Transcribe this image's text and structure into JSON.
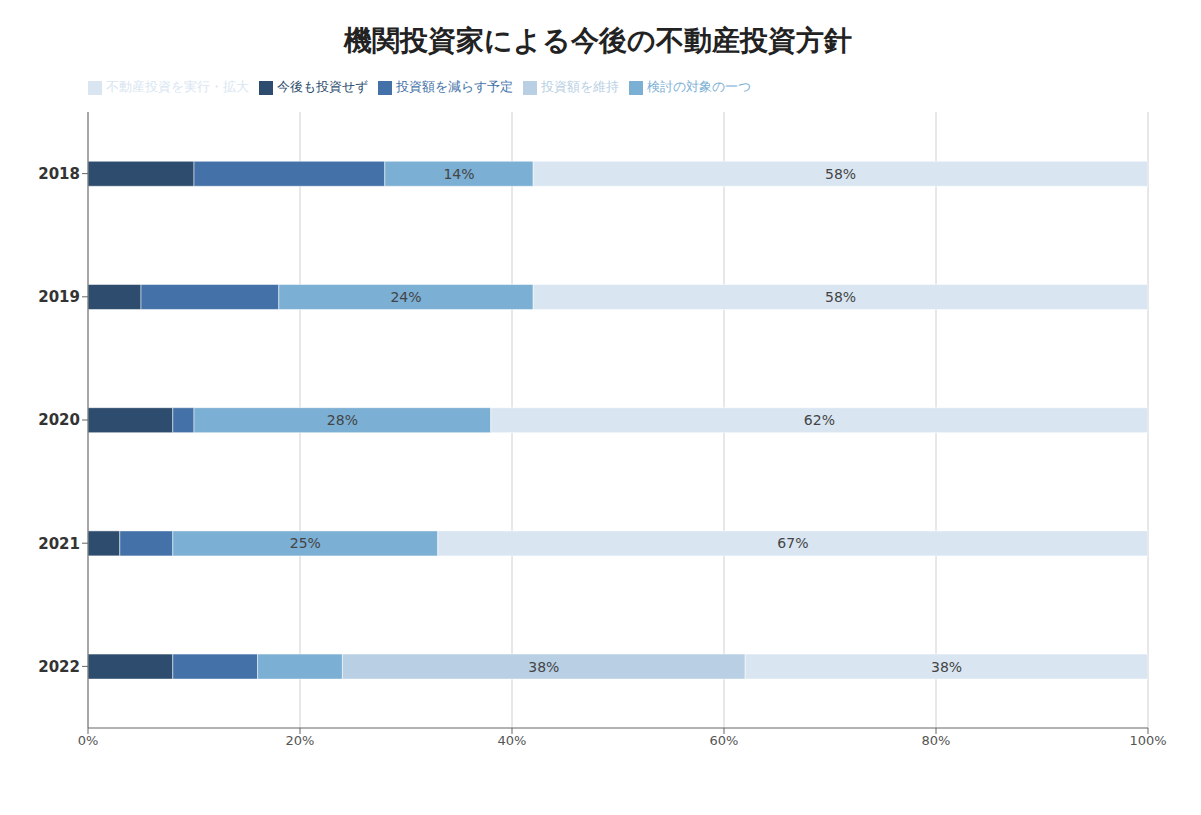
{
  "chart_data": {
    "type": "bar",
    "title": "機関投資家による今後の不動産投資方針",
    "orientation": "horizontal",
    "stacked": true,
    "categories": [
      "2018",
      "2019",
      "2020",
      "2021",
      "2022"
    ],
    "series": [
      {
        "name": "今後も投資せず",
        "color": "#2e4d6e",
        "values": [
          10,
          5,
          8,
          3,
          8
        ]
      },
      {
        "name": "投資額を減らす予定",
        "color": "#4472a8",
        "values": [
          18,
          13,
          2,
          5,
          8
        ]
      },
      {
        "name": "検討の対象の一つ",
        "color": "#7bafd4",
        "values": [
          14,
          24,
          28,
          25,
          8
        ],
        "value_labels": [
          "14%",
          "24%",
          "28%",
          "25%",
          null
        ]
      },
      {
        "name": "投資額を維持",
        "color": "#b8cfe4",
        "values": [
          0,
          0,
          0,
          0,
          38
        ],
        "value_labels": [
          null,
          null,
          null,
          null,
          "38%"
        ]
      },
      {
        "name": "不動産投資を実行・拡大",
        "color": "#d9e6f2",
        "values": [
          58,
          58,
          62,
          67,
          38
        ],
        "value_labels": [
          "58%",
          "58%",
          "62%",
          "67%",
          "38%"
        ]
      }
    ],
    "xlim": [
      0,
      100
    ],
    "xticks": [
      {
        "value": 0,
        "label": "0%"
      },
      {
        "value": 20,
        "label": "20%"
      },
      {
        "value": 40,
        "label": "40%"
      },
      {
        "value": 60,
        "label": "60%"
      },
      {
        "value": 80,
        "label": "80%"
      },
      {
        "value": 100,
        "label": "100%"
      }
    ],
    "grid": true,
    "legend": "top"
  }
}
